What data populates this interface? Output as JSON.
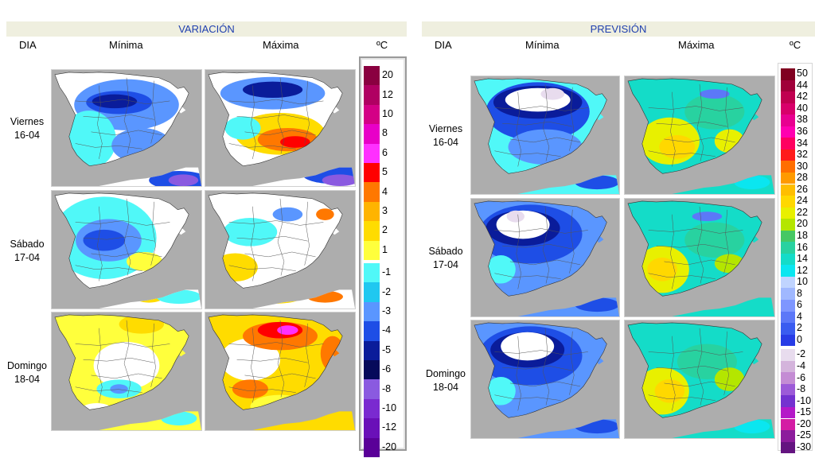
{
  "variacion": {
    "title": "VARIACIÓN",
    "col_dia": "DIA",
    "col_min": "Mínima",
    "col_max": "Máxima",
    "unit": "ºC",
    "legend": {
      "labels": [
        "20",
        "12",
        "10",
        "8",
        "6",
        "5",
        "4",
        "3",
        "2",
        "1",
        "-1",
        "-2",
        "-3",
        "-4",
        "-5",
        "-6",
        "-8",
        "-10",
        "-12",
        "-20"
      ],
      "colors": [
        "#8a0040",
        "#b00062",
        "#d40086",
        "#e800c8",
        "#ff30ff",
        "#ff0000",
        "#ff7800",
        "#ffb400",
        "#ffdc00",
        "#ffff3c",
        "#50f8f8",
        "#20c8f0",
        "#5a96ff",
        "#1e4ee6",
        "#0a1c9a",
        "#060a5a",
        "#8a5ae0",
        "#7a2ad0",
        "#6a10b8",
        "#5a0098"
      ]
    }
  },
  "prevision": {
    "title": "PREVISIÓN",
    "col_dia": "DIA",
    "col_min": "Mínima",
    "col_max": "Máxima",
    "unit": "ºC",
    "legend": {
      "labels": [
        "50",
        "44",
        "42",
        "40",
        "38",
        "36",
        "34",
        "32",
        "30",
        "28",
        "26",
        "24",
        "22",
        "20",
        "18",
        "16",
        "14",
        "12",
        "10",
        "8",
        "6",
        "4",
        "2",
        "0",
        "-2",
        "-4",
        "-6",
        "-8",
        "-10",
        "-15",
        "-20",
        "-25",
        "-30"
      ],
      "colors": [
        "#800020",
        "#a0003a",
        "#c00050",
        "#d8006a",
        "#e80090",
        "#ff00b0",
        "#ff0060",
        "#ff1a1a",
        "#ff6e00",
        "#ff9a00",
        "#ffbe00",
        "#ffd800",
        "#e8f000",
        "#b4e600",
        "#46c864",
        "#28d2a0",
        "#14dcc8",
        "#0ae6f0",
        "#c0d4ff",
        "#a0b8ff",
        "#7e96ff",
        "#5c78f8",
        "#3a5cf0",
        "#283ce6",
        "#e8dcee",
        "#d4b4dc",
        "#c48cd4",
        "#9c5ad8",
        "#7432d0",
        "#b418c8",
        "#d41ca4",
        "#8c1c9c",
        "#641480"
      ]
    }
  },
  "days": [
    {
      "name": "Viernes",
      "date": "16-04"
    },
    {
      "name": "Sábado",
      "date": "17-04"
    },
    {
      "name": "Domingo",
      "date": "18-04"
    }
  ],
  "maps": {
    "var_min": [
      {
        "base": "#ffffff",
        "blobs": [
          [
            "#5a96ff",
            0.5,
            0.3,
            0.35,
            0.22
          ],
          [
            "#1e4ee6",
            0.45,
            0.28,
            0.22,
            0.1
          ],
          [
            "#0a1c9a",
            0.42,
            0.27,
            0.15,
            0.06
          ],
          [
            "#50f8f8",
            0.25,
            0.6,
            0.18,
            0.25
          ],
          [
            "#5a96ff",
            0.6,
            0.65,
            0.2,
            0.15
          ],
          [
            "#50f8f8",
            0.35,
            0.9,
            0.2,
            0.06
          ],
          [
            "#1e4ee6",
            0.85,
            0.95,
            0.2,
            0.08
          ],
          [
            "#8a5ae0",
            0.88,
            0.95,
            0.1,
            0.05
          ]
        ]
      },
      {
        "base": "#ffffff",
        "blobs": [
          [
            "#50f8f8",
            0.35,
            0.4,
            0.35,
            0.35
          ],
          [
            "#5a96ff",
            0.38,
            0.42,
            0.22,
            0.18
          ],
          [
            "#1e4ee6",
            0.35,
            0.42,
            0.14,
            0.09
          ],
          [
            "#ffff3c",
            0.62,
            0.6,
            0.12,
            0.08
          ],
          [
            "#ffdc00",
            0.65,
            0.9,
            0.1,
            0.05
          ],
          [
            "#50f8f8",
            0.85,
            0.9,
            0.15,
            0.06
          ]
        ]
      },
      {
        "base": "#ffff3c",
        "blobs": [
          [
            "#ffffff",
            0.5,
            0.45,
            0.22,
            0.2
          ],
          [
            "#ffdc00",
            0.6,
            0.1,
            0.15,
            0.08
          ],
          [
            "#50f8f8",
            0.45,
            0.65,
            0.15,
            0.08
          ],
          [
            "#5a96ff",
            0.45,
            0.65,
            0.06,
            0.04
          ],
          [
            "#ffffff",
            0.3,
            0.85,
            0.12,
            0.08
          ],
          [
            "#50f8f8",
            0.85,
            0.9,
            0.12,
            0.06
          ]
        ]
      }
    ],
    "var_max": [
      {
        "base": "#ffffff",
        "blobs": [
          [
            "#5a96ff",
            0.45,
            0.2,
            0.35,
            0.14
          ],
          [
            "#0a1c9a",
            0.45,
            0.17,
            0.2,
            0.07
          ],
          [
            "#ffdc00",
            0.5,
            0.55,
            0.3,
            0.18
          ],
          [
            "#ff7800",
            0.55,
            0.6,
            0.2,
            0.1
          ],
          [
            "#ff0000",
            0.6,
            0.62,
            0.1,
            0.05
          ],
          [
            "#50f8f8",
            0.25,
            0.5,
            0.12,
            0.1
          ],
          [
            "#1e4ee6",
            0.85,
            0.9,
            0.2,
            0.08
          ],
          [
            "#8a5ae0",
            0.9,
            0.95,
            0.12,
            0.05
          ]
        ]
      },
      {
        "base": "#ffffff",
        "blobs": [
          [
            "#50f8f8",
            0.3,
            0.35,
            0.18,
            0.12
          ],
          [
            "#5a96ff",
            0.55,
            0.2,
            0.1,
            0.06
          ],
          [
            "#ffdc00",
            0.2,
            0.65,
            0.15,
            0.12
          ],
          [
            "#ff7800",
            0.8,
            0.2,
            0.06,
            0.05
          ],
          [
            "#ffdc00",
            0.45,
            0.9,
            0.2,
            0.06
          ],
          [
            "#ff7800",
            0.8,
            0.9,
            0.12,
            0.05
          ]
        ]
      },
      {
        "base": "#ffdc00",
        "blobs": [
          [
            "#ffffff",
            0.3,
            0.4,
            0.2,
            0.18
          ],
          [
            "#ff7800",
            0.5,
            0.2,
            0.25,
            0.12
          ],
          [
            "#ff0000",
            0.5,
            0.15,
            0.15,
            0.07
          ],
          [
            "#ff30ff",
            0.55,
            0.15,
            0.07,
            0.04
          ],
          [
            "#ff7800",
            0.85,
            0.35,
            0.08,
            0.15
          ],
          [
            "#ff7800",
            0.3,
            0.65,
            0.12,
            0.08
          ],
          [
            "#ffff3c",
            0.5,
            0.8,
            0.2,
            0.1
          ]
        ]
      }
    ],
    "prev_min": [
      {
        "base": "#50f8f8",
        "blobs": [
          [
            "#1e4ee6",
            0.45,
            0.3,
            0.35,
            0.25
          ],
          [
            "#0a1c9a",
            0.45,
            0.22,
            0.3,
            0.14
          ],
          [
            "#ffffff",
            0.45,
            0.2,
            0.22,
            0.1
          ],
          [
            "#e8dcee",
            0.55,
            0.15,
            0.08,
            0.05
          ],
          [
            "#5a96ff",
            0.5,
            0.6,
            0.25,
            0.15
          ],
          [
            "#1e4ee6",
            0.85,
            0.9,
            0.15,
            0.06
          ]
        ]
      },
      {
        "base": "#5a96ff",
        "blobs": [
          [
            "#1e4ee6",
            0.4,
            0.3,
            0.35,
            0.25
          ],
          [
            "#0a1c9a",
            0.35,
            0.25,
            0.25,
            0.15
          ],
          [
            "#ffffff",
            0.35,
            0.22,
            0.18,
            0.12
          ],
          [
            "#e8dcee",
            0.3,
            0.15,
            0.06,
            0.05
          ],
          [
            "#50f8f8",
            0.2,
            0.6,
            0.1,
            0.12
          ],
          [
            "#1e4ee6",
            0.85,
            0.9,
            0.15,
            0.06
          ]
        ]
      },
      {
        "base": "#5a96ff",
        "blobs": [
          [
            "#1e4ee6",
            0.4,
            0.3,
            0.35,
            0.25
          ],
          [
            "#0a1c9a",
            0.38,
            0.25,
            0.25,
            0.15
          ],
          [
            "#ffffff",
            0.38,
            0.22,
            0.18,
            0.12
          ],
          [
            "#50f8f8",
            0.2,
            0.6,
            0.1,
            0.12
          ],
          [
            "#1e4ee6",
            0.85,
            0.9,
            0.15,
            0.06
          ]
        ]
      }
    ],
    "prev_max": [
      {
        "base": "#14dcc8",
        "blobs": [
          [
            "#e8f000",
            0.3,
            0.55,
            0.2,
            0.2
          ],
          [
            "#ffd800",
            0.35,
            0.6,
            0.12,
            0.1
          ],
          [
            "#28d2a0",
            0.6,
            0.3,
            0.2,
            0.15
          ],
          [
            "#5c78f8",
            0.6,
            0.15,
            0.1,
            0.04
          ],
          [
            "#e8f000",
            0.7,
            0.55,
            0.1,
            0.1
          ],
          [
            "#0ae6f0",
            0.85,
            0.9,
            0.12,
            0.06
          ]
        ]
      },
      {
        "base": "#14dcc8",
        "blobs": [
          [
            "#e8f000",
            0.25,
            0.6,
            0.18,
            0.2
          ],
          [
            "#ffd800",
            0.25,
            0.6,
            0.1,
            0.1
          ],
          [
            "#28d2a0",
            0.6,
            0.35,
            0.2,
            0.15
          ],
          [
            "#5c78f8",
            0.55,
            0.15,
            0.1,
            0.04
          ],
          [
            "#b4e600",
            0.7,
            0.55,
            0.1,
            0.08
          ]
        ]
      },
      {
        "base": "#14dcc8",
        "blobs": [
          [
            "#e8f000",
            0.25,
            0.6,
            0.18,
            0.2
          ],
          [
            "#ffd800",
            0.3,
            0.6,
            0.1,
            0.1
          ],
          [
            "#28d2a0",
            0.55,
            0.35,
            0.2,
            0.15
          ],
          [
            "#b4e600",
            0.7,
            0.5,
            0.1,
            0.1
          ],
          [
            "#0ae6f0",
            0.85,
            0.9,
            0.12,
            0.06
          ]
        ]
      }
    ]
  }
}
